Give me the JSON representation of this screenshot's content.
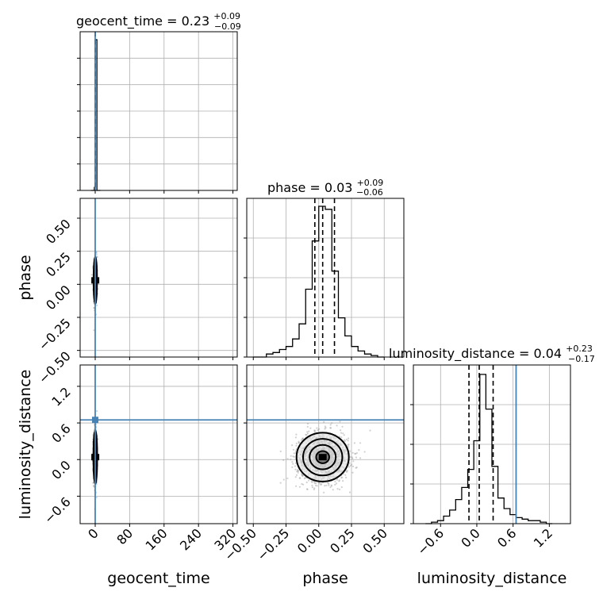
{
  "chart_data": {
    "type": "corner",
    "parameters": [
      "geocent_time",
      "phase",
      "luminosity_distance"
    ],
    "axis_labels": {
      "x": [
        "geocent_time",
        "phase",
        "luminosity_distance"
      ],
      "y": [
        "",
        "phase",
        "luminosity_distance"
      ]
    },
    "titles": [
      {
        "name": "geocent_time",
        "median": "0.23",
        "plus": "+0.09",
        "minus": "−0.09"
      },
      {
        "name": "phase",
        "median": "0.03",
        "plus": "+0.09",
        "minus": "−0.06"
      },
      {
        "name": "luminosity_distance",
        "median": "0.04",
        "plus": "+0.23",
        "minus": "−0.17"
      }
    ],
    "ranges": {
      "geocent_time": [
        -35,
        330
      ],
      "phase": [
        -0.55,
        0.65
      ],
      "luminosity_distance": [
        -1.05,
        1.55
      ]
    },
    "ticks": {
      "geocent_time": {
        "values": [
          0,
          80,
          160,
          240,
          320
        ],
        "labels": [
          "0",
          "80",
          "160",
          "240",
          "320"
        ]
      },
      "phase_x": {
        "values": [
          -0.5,
          -0.25,
          0.0,
          0.25,
          0.5
        ],
        "labels": [
          "−0.50",
          "−0.25",
          "0.00",
          "0.25",
          "0.50"
        ]
      },
      "phase_y": {
        "values": [
          -0.5,
          -0.25,
          0.0,
          0.25,
          0.5
        ],
        "labels": [
          "−0.50",
          "−0.25",
          "0.00",
          "0.25",
          "0.50"
        ]
      },
      "luminosity_distance": {
        "values": [
          -0.6,
          0.0,
          0.6,
          1.2
        ],
        "labels": [
          "−0.6",
          "0.0",
          "0.6",
          "1.2"
        ]
      }
    },
    "quantile_lines": {
      "geocent_time": [
        0.14,
        0.23,
        0.32
      ],
      "phase": [
        -0.03,
        0.03,
        0.12
      ],
      "luminosity_distance": [
        -0.13,
        0.04,
        0.27
      ]
    },
    "truths": {
      "geocent_time": 0.0,
      "phase": null,
      "luminosity_distance": 0.65
    },
    "histograms": {
      "geocent_time": {
        "bin_edges": [
          -10,
          -2,
          0,
          4,
          12
        ],
        "counts": [
          0.0,
          0.02,
          1.0,
          0.0
        ]
      },
      "phase": {
        "bin_edges": [
          -0.5,
          -0.45,
          -0.4,
          -0.35,
          -0.3,
          -0.25,
          -0.2,
          -0.15,
          -0.1,
          -0.05,
          0.0,
          0.05,
          0.1,
          0.15,
          0.2,
          0.25,
          0.3,
          0.35,
          0.4,
          0.45,
          0.5
        ],
        "counts": [
          0.0,
          0.0,
          0.02,
          0.03,
          0.05,
          0.07,
          0.12,
          0.22,
          0.45,
          0.77,
          1.0,
          0.98,
          0.57,
          0.26,
          0.14,
          0.07,
          0.04,
          0.02,
          0.01,
          0.0
        ]
      },
      "luminosity_distance": {
        "bin_edges": [
          -0.85,
          -0.75,
          -0.65,
          -0.55,
          -0.45,
          -0.35,
          -0.25,
          -0.15,
          -0.05,
          0.05,
          0.15,
          0.25,
          0.35,
          0.45,
          0.55,
          0.65,
          0.75,
          0.85,
          0.95,
          1.05,
          1.15,
          1.25
        ],
        "counts": [
          0.0,
          0.01,
          0.02,
          0.05,
          0.09,
          0.16,
          0.24,
          0.36,
          0.55,
          0.99,
          0.76,
          0.38,
          0.17,
          0.1,
          0.06,
          0.04,
          0.03,
          0.02,
          0.02,
          0.01,
          0.0
        ]
      }
    },
    "density_contours": {
      "phase_vs_geocent_time": {
        "center": [
          0.23,
          0.03
        ],
        "sigma": [
          2.0,
          0.09
        ]
      },
      "luminosity_distance_vs_geocent_time": {
        "center": [
          0.23,
          0.04
        ],
        "sigma": [
          2.2,
          0.22
        ]
      },
      "luminosity_distance_vs_phase": {
        "center": [
          0.03,
          0.04
        ],
        "sigma": [
          0.1,
          0.2
        ]
      }
    },
    "grid": true,
    "colors": {
      "line": "#000000",
      "truth": "#4682b4",
      "grid": "#b0b0b0",
      "scatter": "#9a9a9a"
    }
  }
}
